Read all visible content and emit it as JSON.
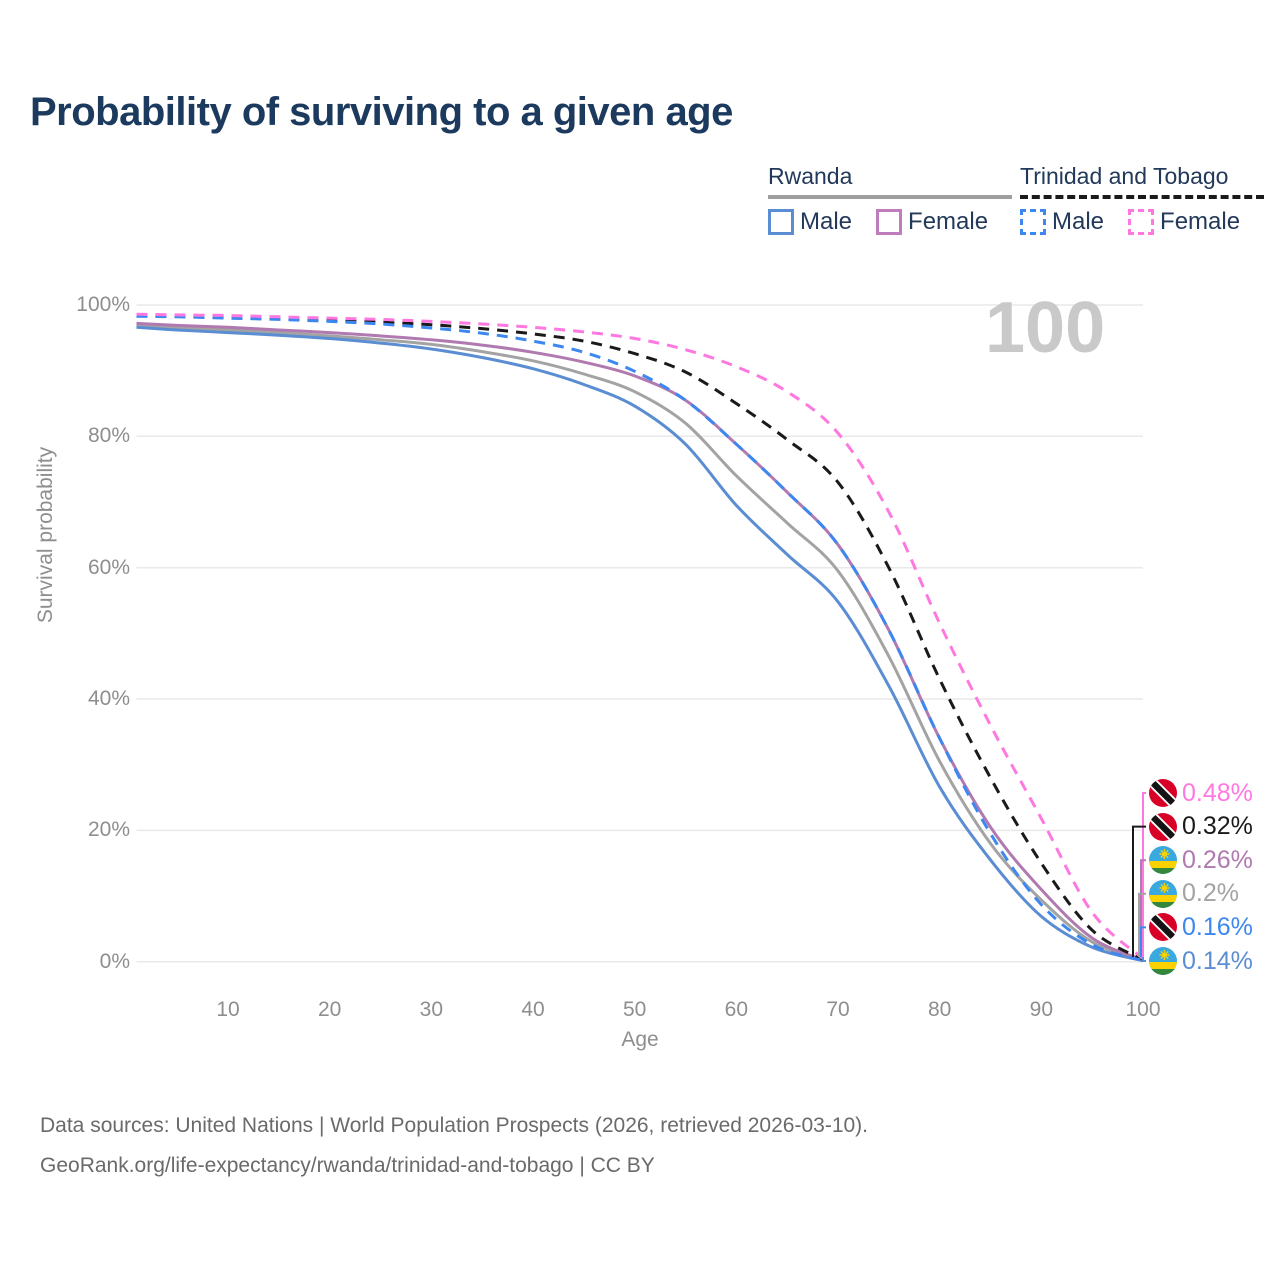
{
  "header": {
    "title": "Probability of surviving to a given age"
  },
  "legend": {
    "groups": [
      {
        "country": "Rwanda",
        "line_style": "solid",
        "underline_color": "#9e9e9e",
        "items": [
          {
            "label": "Male",
            "color": "#5b8dd3",
            "dashed": false
          },
          {
            "label": "Female",
            "color": "#bf7cbf",
            "dashed": false
          }
        ]
      },
      {
        "country": "Trinidad and Tobago",
        "line_style": "dashed",
        "underline_color": "#1a1a1a",
        "items": [
          {
            "label": "Male",
            "color": "#3d87f0",
            "dashed": true
          },
          {
            "label": "Female",
            "color": "#ff78e0",
            "dashed": true
          }
        ]
      }
    ]
  },
  "watermark": "100",
  "chart_data": {
    "type": "line",
    "title": "Probability of surviving to a given age",
    "xlabel": "Age",
    "ylabel": "Survival probability",
    "xlim": [
      1,
      100
    ],
    "ylim": [
      0,
      100
    ],
    "grid": "horizontal",
    "x_ticks": [
      10,
      20,
      30,
      40,
      50,
      60,
      70,
      80,
      90,
      100
    ],
    "y_ticks": [
      0,
      20,
      40,
      60,
      80,
      100
    ],
    "y_tick_suffix": "%",
    "legend_position": "top-right",
    "x": [
      1,
      5,
      10,
      15,
      20,
      25,
      30,
      35,
      40,
      45,
      50,
      55,
      60,
      65,
      70,
      75,
      80,
      85,
      90,
      95,
      100
    ],
    "series": [
      {
        "name": "Rwanda",
        "color": "#a3a3a3",
        "dashed": false,
        "values": [
          96.9,
          96.6,
          96.2,
          95.8,
          95.3,
          94.7,
          94.0,
          92.9,
          91.5,
          89.5,
          86.8,
          82.0,
          74.0,
          66.8,
          59.5,
          46.5,
          30.5,
          18.0,
          9.4,
          3.0,
          0.2
        ]
      },
      {
        "name": "Rwanda Male",
        "color": "#5b8dd3",
        "dashed": false,
        "values": [
          96.6,
          96.2,
          95.8,
          95.4,
          94.9,
          94.2,
          93.3,
          92.0,
          90.3,
          87.9,
          84.6,
          78.8,
          69.5,
          62.0,
          54.8,
          42.0,
          26.6,
          15.5,
          6.9,
          2.2,
          0.14
        ]
      },
      {
        "name": "Rwanda Female",
        "color": "#b07ab0",
        "dashed": false,
        "values": [
          97.2,
          96.9,
          96.6,
          96.2,
          95.8,
          95.3,
          94.7,
          93.9,
          92.8,
          91.3,
          89.2,
          85.5,
          78.8,
          71.5,
          63.5,
          50.5,
          34.0,
          20.5,
          11.0,
          3.6,
          0.26
        ]
      },
      {
        "name": "Trinidad and Tobago",
        "color": "#1a1a1a",
        "dashed": true,
        "values": [
          98.4,
          98.3,
          98.2,
          98.0,
          97.7,
          97.4,
          97.0,
          96.4,
          95.6,
          94.5,
          92.6,
          89.8,
          85.0,
          79.5,
          73.0,
          60.0,
          43.0,
          28.0,
          15.0,
          4.8,
          0.32
        ]
      },
      {
        "name": "Trinidad and Tobago Male",
        "color": "#3d87f0",
        "dashed": true,
        "values": [
          98.3,
          98.2,
          98.0,
          97.8,
          97.5,
          97.1,
          96.5,
          95.7,
          94.5,
          92.8,
          89.9,
          85.5,
          78.8,
          71.5,
          63.5,
          50.5,
          34.0,
          19.5,
          8.7,
          2.6,
          0.16
        ]
      },
      {
        "name": "Trinidad and Tobago Female",
        "color": "#ff78e0",
        "dashed": true,
        "values": [
          98.6,
          98.5,
          98.4,
          98.2,
          98.0,
          97.8,
          97.5,
          97.1,
          96.6,
          95.9,
          94.9,
          93.2,
          90.6,
          86.8,
          80.5,
          68.5,
          51.5,
          36.0,
          21.8,
          7.5,
          0.48
        ]
      }
    ],
    "end_labels": [
      {
        "text": "0.48%",
        "color": "#ff78e0",
        "flag": "trinidad-and-tobago",
        "series": "Trinidad and Tobago Female"
      },
      {
        "text": "0.32%",
        "color": "#1a1a1a",
        "flag": "trinidad-and-tobago",
        "series": "Trinidad and Tobago"
      },
      {
        "text": "0.26%",
        "color": "#b07ab0",
        "flag": "rwanda",
        "series": "Rwanda Female"
      },
      {
        "text": "0.2%",
        "color": "#a3a3a3",
        "flag": "rwanda",
        "series": "Rwanda"
      },
      {
        "text": "0.16%",
        "color": "#3d87f0",
        "flag": "trinidad-and-tobago",
        "series": "Trinidad and Tobago Male"
      },
      {
        "text": "0.14%",
        "color": "#5b8dd3",
        "flag": "rwanda",
        "series": "Rwanda Male"
      }
    ]
  },
  "footer": {
    "line1": "Data sources: United Nations | World Population Prospects (2026, retrieved 2026-03-10).",
    "line2": "GeoRank.org/life-expectancy/rwanda/trinidad-and-tobago | CC BY"
  }
}
